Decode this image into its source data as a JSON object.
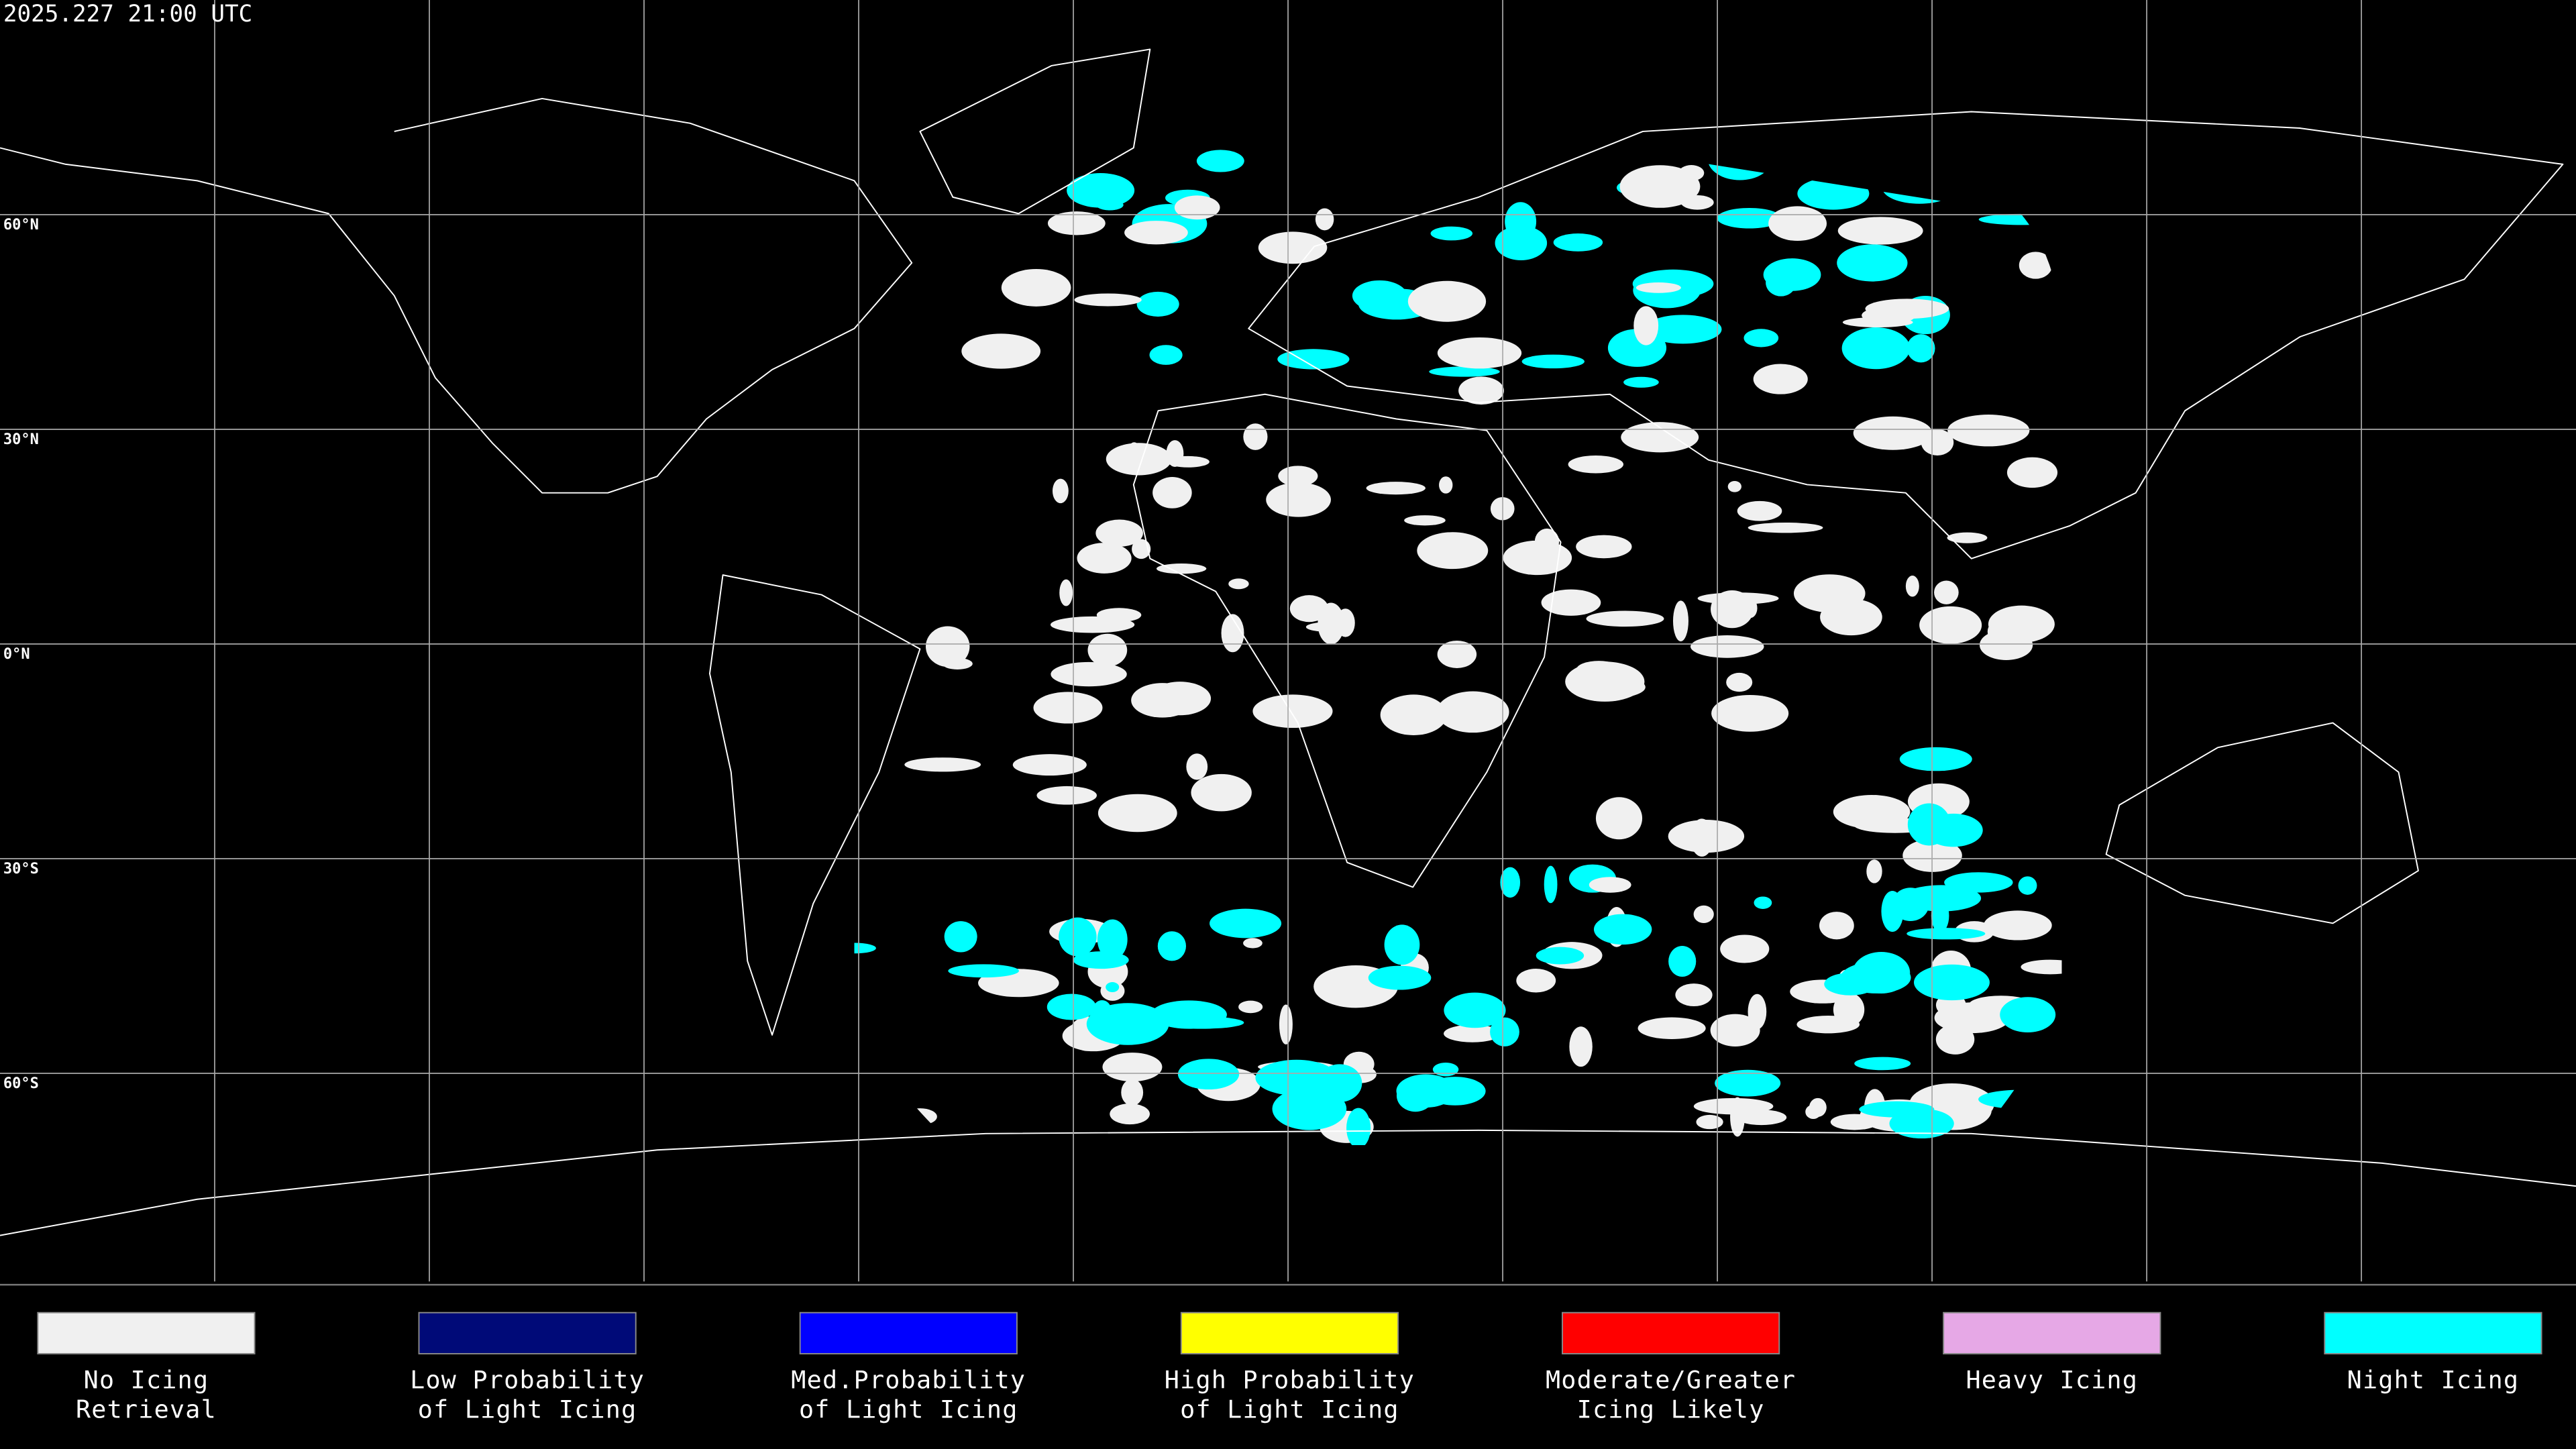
{
  "header": {
    "timestamp": "2025.227 21:00 UTC"
  },
  "map": {
    "latitude_labels": [
      "60°N",
      "30°N",
      "0°N",
      "30°S",
      "60°S"
    ]
  },
  "legend": {
    "items": [
      {
        "lines": [
          "No Icing",
          "Retrieval"
        ],
        "color": "#f0f0f0"
      },
      {
        "lines": [
          "Low Probability",
          "of Light Icing"
        ],
        "color": "#000a78"
      },
      {
        "lines": [
          "Med.Probability",
          "of Light Icing"
        ],
        "color": "#0000ff"
      },
      {
        "lines": [
          "High Probability",
          "of Light Icing"
        ],
        "color": "#ffff00"
      },
      {
        "lines": [
          "Moderate/Greater",
          "Icing Likely"
        ],
        "color": "#ff0000"
      },
      {
        "lines": [
          "Heavy Icing"
        ],
        "color": "#e6a8e6"
      },
      {
        "lines": [
          "Night Icing"
        ],
        "color": "#00ffff"
      }
    ]
  }
}
